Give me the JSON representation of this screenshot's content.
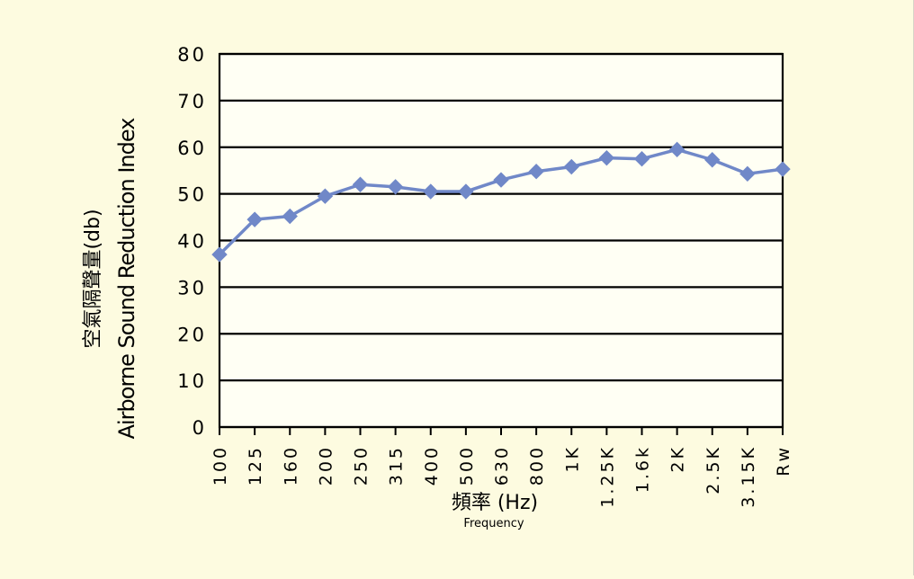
{
  "chart_data": {
    "type": "line",
    "categories": [
      "100",
      "125",
      "160",
      "200",
      "250",
      "315",
      "400",
      "500",
      "630",
      "800",
      "1K",
      "1.25K",
      "1.6k",
      "2K",
      "2.5K",
      "3.15K",
      "Rw"
    ],
    "series": [
      {
        "values": [
          37,
          44.5,
          45.2,
          49.5,
          52,
          51.5,
          50.5,
          50.5,
          53,
          54.8,
          55.8,
          57.7,
          57.5,
          59.5,
          57.3,
          54.3,
          55.3
        ]
      }
    ],
    "ylim": [
      0,
      80
    ],
    "yticks": [
      0,
      10,
      20,
      30,
      40,
      50,
      60,
      70,
      80
    ],
    "ylabel_cn": "空氣隔聲量(db)",
    "ylabel_en": "Airborne Sound Reduction Index",
    "xlabel_cn": "頻率 (Hz)",
    "xlabel_en": "Frequency",
    "grid": true,
    "colors": {
      "line": "#7088c8",
      "marker": "#7088c8",
      "grid": "#000000",
      "background": "#fdfbe0"
    }
  }
}
